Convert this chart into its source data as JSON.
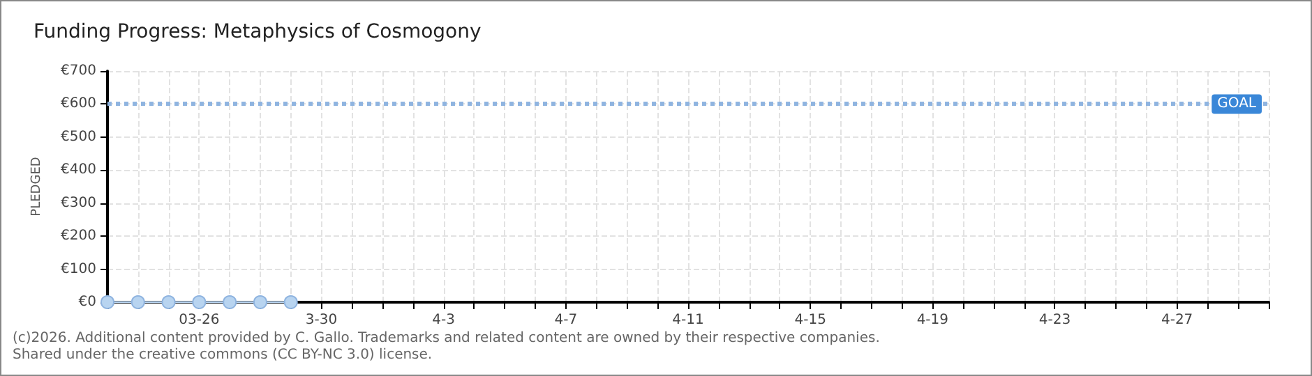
{
  "chart_data": {
    "type": "line",
    "title": "Funding Progress: Metaphysics of Cosmogony",
    "ylabel": "PLEDGED",
    "categories": [
      null,
      null,
      null,
      "03-26",
      null,
      null,
      null,
      "3-30",
      null,
      null,
      null,
      "4-3",
      null,
      null,
      null,
      "4-7",
      null,
      null,
      null,
      "4-11",
      null,
      null,
      null,
      "4-15",
      null,
      null,
      null,
      "4-19",
      null,
      null,
      null,
      "4-23",
      null,
      null,
      null,
      "4-27",
      null,
      null,
      null
    ],
    "series": [
      {
        "color": "#b8d4f0",
        "values": [
          0,
          0,
          0,
          0,
          0,
          0,
          0,
          null,
          null,
          null,
          null,
          null,
          null,
          null,
          null,
          null,
          null,
          null,
          null,
          null,
          null,
          null,
          null,
          null,
          null,
          null,
          null,
          null,
          null,
          null,
          null,
          null,
          null,
          null,
          null,
          null,
          null,
          null,
          null
        ]
      }
    ],
    "ylim": [
      0,
      700
    ],
    "yticks": [
      {
        "value": 0,
        "label": "€0"
      },
      {
        "value": 100,
        "label": "€100"
      },
      {
        "value": 200,
        "label": "€200"
      },
      {
        "value": 300,
        "label": "€300"
      },
      {
        "value": 400,
        "label": "€400"
      },
      {
        "value": 500,
        "label": "€500"
      },
      {
        "value": 600,
        "label": "€600"
      },
      {
        "value": 700,
        "label": "€700"
      }
    ],
    "grid": true,
    "marker": "circle",
    "line_style": "solid",
    "ref_lines": [
      {
        "axis": "y",
        "value": 600,
        "label": "GOAL",
        "color": "#8fb4e0",
        "line_style": "dotted"
      }
    ],
    "annotations": [
      "(c)2026. Additional content provided by C. Gallo. Trademarks and related content are owned by their respective companies.",
      "Shared under the creative commons (CC BY-NC 3.0) license."
    ]
  }
}
